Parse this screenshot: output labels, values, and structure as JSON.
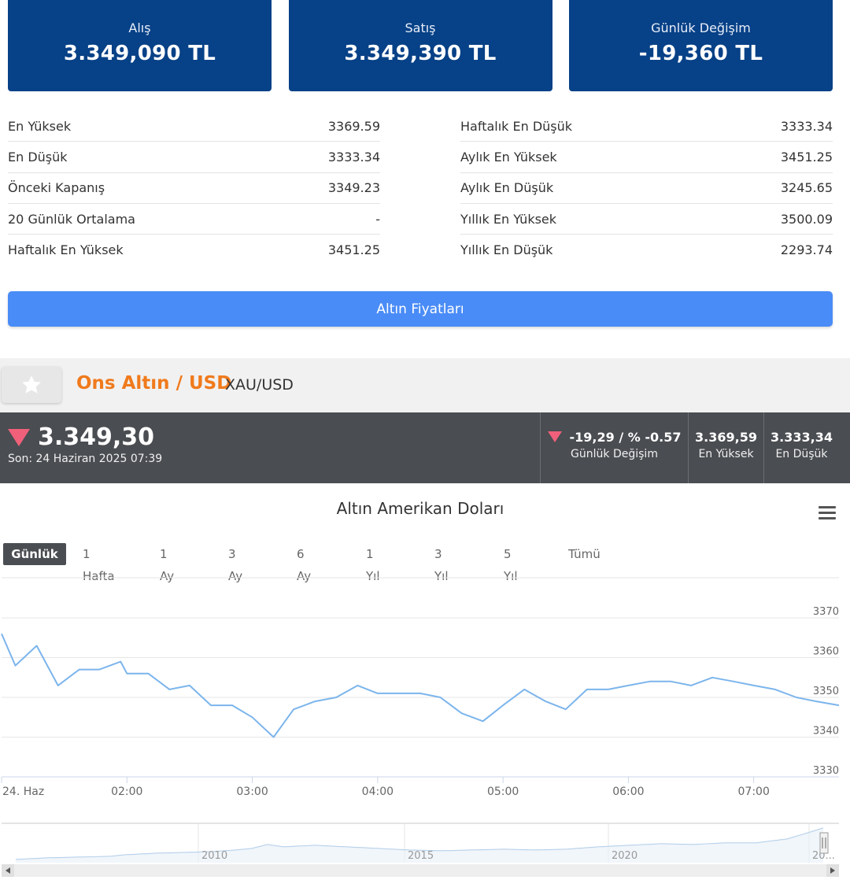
{
  "cards": [
    {
      "label": "Alış",
      "value": "3.349,090 TL"
    },
    {
      "label": "Satış",
      "value": "3.349,390 TL"
    },
    {
      "label": "Günlük Değişim",
      "value": "-19,360 TL"
    }
  ],
  "stats_left": [
    {
      "label": "En Yüksek",
      "value": "3369.59"
    },
    {
      "label": "En Düşük",
      "value": "3333.34"
    },
    {
      "label": "Önceki Kapanış",
      "value": "3349.23"
    },
    {
      "label": "20 Günlük Ortalama",
      "value": "-"
    },
    {
      "label": "Haftalık En Yüksek",
      "value": "3451.25"
    }
  ],
  "stats_right": [
    {
      "label": "Haftalık En Düşük",
      "value": "3333.34"
    },
    {
      "label": "Aylık En Yüksek",
      "value": "3451.25"
    },
    {
      "label": "Aylık En Düşük",
      "value": "3245.65"
    },
    {
      "label": "Yıllık En Yüksek",
      "value": "3500.09"
    },
    {
      "label": "Yıllık En Düşük",
      "value": "2293.74"
    }
  ],
  "gold_button": "Altın Fiyatları",
  "instrument": {
    "title": "Ons Altın / USD",
    "code": "XAU/USD",
    "fav_icon": "star-icon"
  },
  "quote": {
    "price": "3.349,30",
    "time": "Son: 24 Haziran 2025 07:39",
    "change_value": "-19,29 / % -0.57",
    "change_label": "Günlük Değişim",
    "high_value": "3.369,59",
    "high_label": "En Yüksek",
    "low_value": "3.333,34",
    "low_label": "En Düşük",
    "down_color": "#f0607a"
  },
  "chart_title": "Altın Amerikan Doları",
  "ranges": [
    "Günlük",
    "1 Hafta",
    "1 Ay",
    "3 Ay",
    "6 Ay",
    "1 Yıl",
    "3 Yıl",
    "5 Yıl",
    "Tümü"
  ],
  "active_range": "Günlük",
  "chart_data": {
    "type": "line",
    "title": "Altın Amerikan Doları",
    "xlabel": "",
    "ylabel": "",
    "x_ticks": [
      "24. Haz",
      "02:00",
      "03:00",
      "04:00",
      "05:00",
      "06:00",
      "07:00"
    ],
    "x_tick_hours": [
      1.0,
      2.0,
      3.0,
      4.0,
      5.0,
      6.0,
      7.0
    ],
    "y_ticks": [
      3330,
      3340,
      3350,
      3360,
      3370
    ],
    "xlim": [
      1.0,
      7.68
    ],
    "ylim": [
      3330,
      3370
    ],
    "grid": true,
    "color": "#7cb5ec",
    "series": [
      {
        "x": [
          1.0,
          1.11,
          1.28,
          1.45,
          1.62,
          1.78,
          1.95,
          2.0,
          2.17,
          2.34,
          2.5,
          2.67,
          2.84,
          3.0,
          3.17,
          3.33,
          3.5,
          3.67,
          3.84,
          4.0,
          4.17,
          4.34,
          4.5,
          4.67,
          4.84,
          5.0,
          5.17,
          5.34,
          5.5,
          5.67,
          5.84,
          6.0,
          6.17,
          6.34,
          6.5,
          6.67,
          6.84,
          7.0,
          7.17,
          7.34,
          7.5,
          7.68
        ],
        "y": [
          3366,
          3358,
          3363,
          3353,
          3357,
          3357,
          3359,
          3356,
          3356,
          3352,
          3353,
          3348,
          3348,
          3345,
          3340,
          3347,
          3349,
          3350,
          3353,
          3351,
          3351,
          3351,
          3350,
          3346,
          3344,
          3348,
          3352,
          3349,
          3347,
          3352,
          3352,
          3353,
          3354,
          3354,
          3353,
          3355,
          3354,
          3353,
          3352,
          3350,
          3349,
          3348
        ]
      }
    ],
    "navigator": {
      "labels": [
        "2010",
        "2015",
        "2020",
        "20..."
      ]
    }
  }
}
